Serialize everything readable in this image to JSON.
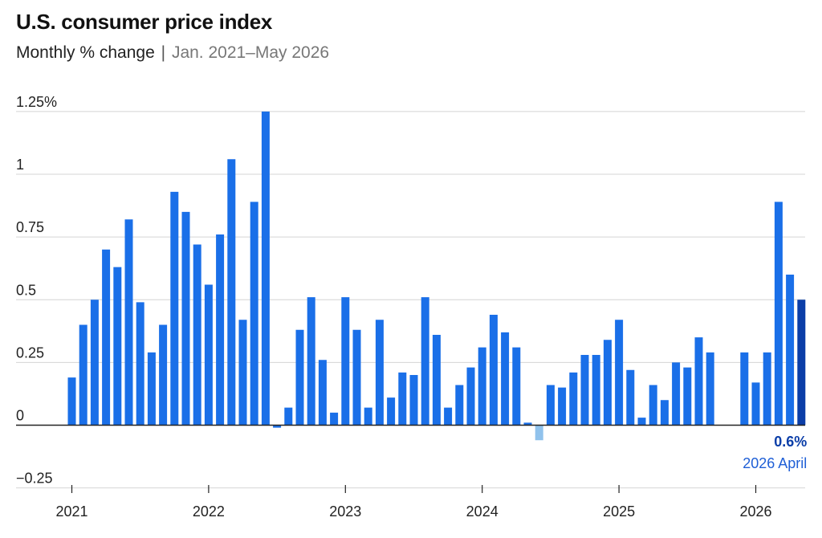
{
  "header": {
    "title": "U.S. consumer price index",
    "subtitle_main": "Monthly % change",
    "subtitle_sep": "|",
    "subtitle_range": "Jan. 2021–May 2026"
  },
  "colors": {
    "bar": "#1a6fe8",
    "negative_bar": "#90c2ec",
    "highlight_bar": "#0b3ea8",
    "grid": "#d4d4d4",
    "axis": "#222222"
  },
  "annotation": {
    "value_label": "0.6%",
    "date_label": "2026 April"
  },
  "chart_data": {
    "type": "bar",
    "title": "U.S. consumer price index",
    "subtitle": "Monthly % change | Jan. 2021–May 2026",
    "ylim": [
      -0.25,
      1.25
    ],
    "y_ticks": [
      -0.25,
      0,
      0.25,
      0.5,
      0.75,
      1,
      1.25
    ],
    "y_tick_labels": [
      "−0.25",
      "0",
      "0.25",
      "0.5",
      "0.75",
      "1",
      "1.25%"
    ],
    "x_ticks": [
      "2021",
      "2022",
      "2023",
      "2024",
      "2025",
      "2026"
    ],
    "grid": true,
    "start": "2021-01",
    "highlight": "2026-05",
    "categories": [
      "2021-01",
      "2021-02",
      "2021-03",
      "2021-04",
      "2021-05",
      "2021-06",
      "2021-07",
      "2021-08",
      "2021-09",
      "2021-10",
      "2021-11",
      "2021-12",
      "2022-01",
      "2022-02",
      "2022-03",
      "2022-04",
      "2022-05",
      "2022-06",
      "2022-07",
      "2022-08",
      "2022-09",
      "2022-10",
      "2022-11",
      "2022-12",
      "2023-01",
      "2023-02",
      "2023-03",
      "2023-04",
      "2023-05",
      "2023-06",
      "2023-07",
      "2023-08",
      "2023-09",
      "2023-10",
      "2023-11",
      "2023-12",
      "2024-01",
      "2024-02",
      "2024-03",
      "2024-04",
      "2024-05",
      "2024-06",
      "2024-07",
      "2024-08",
      "2024-09",
      "2024-10",
      "2024-11",
      "2024-12",
      "2025-01",
      "2025-02",
      "2025-03",
      "2025-04",
      "2025-05",
      "2025-06",
      "2025-07",
      "2025-08",
      "2025-09",
      "2025-10",
      "2025-11",
      "2025-12",
      "2026-01",
      "2026-02",
      "2026-03",
      "2026-04",
      "2026-05"
    ],
    "values": [
      0.19,
      0.4,
      0.5,
      0.7,
      0.63,
      0.82,
      0.49,
      0.29,
      0.4,
      0.93,
      0.85,
      0.72,
      0.56,
      0.76,
      1.06,
      0.42,
      0.89,
      1.25,
      -0.01,
      0.07,
      0.38,
      0.51,
      0.26,
      0.05,
      0.51,
      0.38,
      0.07,
      0.42,
      0.11,
      0.21,
      0.2,
      0.51,
      0.36,
      0.07,
      0.16,
      0.23,
      0.31,
      0.44,
      0.37,
      0.31,
      0.01,
      -0.06,
      0.16,
      0.15,
      0.21,
      0.28,
      0.28,
      0.34,
      0.42,
      0.22,
      0.03,
      0.16,
      0.1,
      0.25,
      0.23,
      0.35,
      0.29,
      null,
      null,
      0.29,
      0.17,
      0.29,
      0.89,
      0.6,
      0.5
    ]
  }
}
